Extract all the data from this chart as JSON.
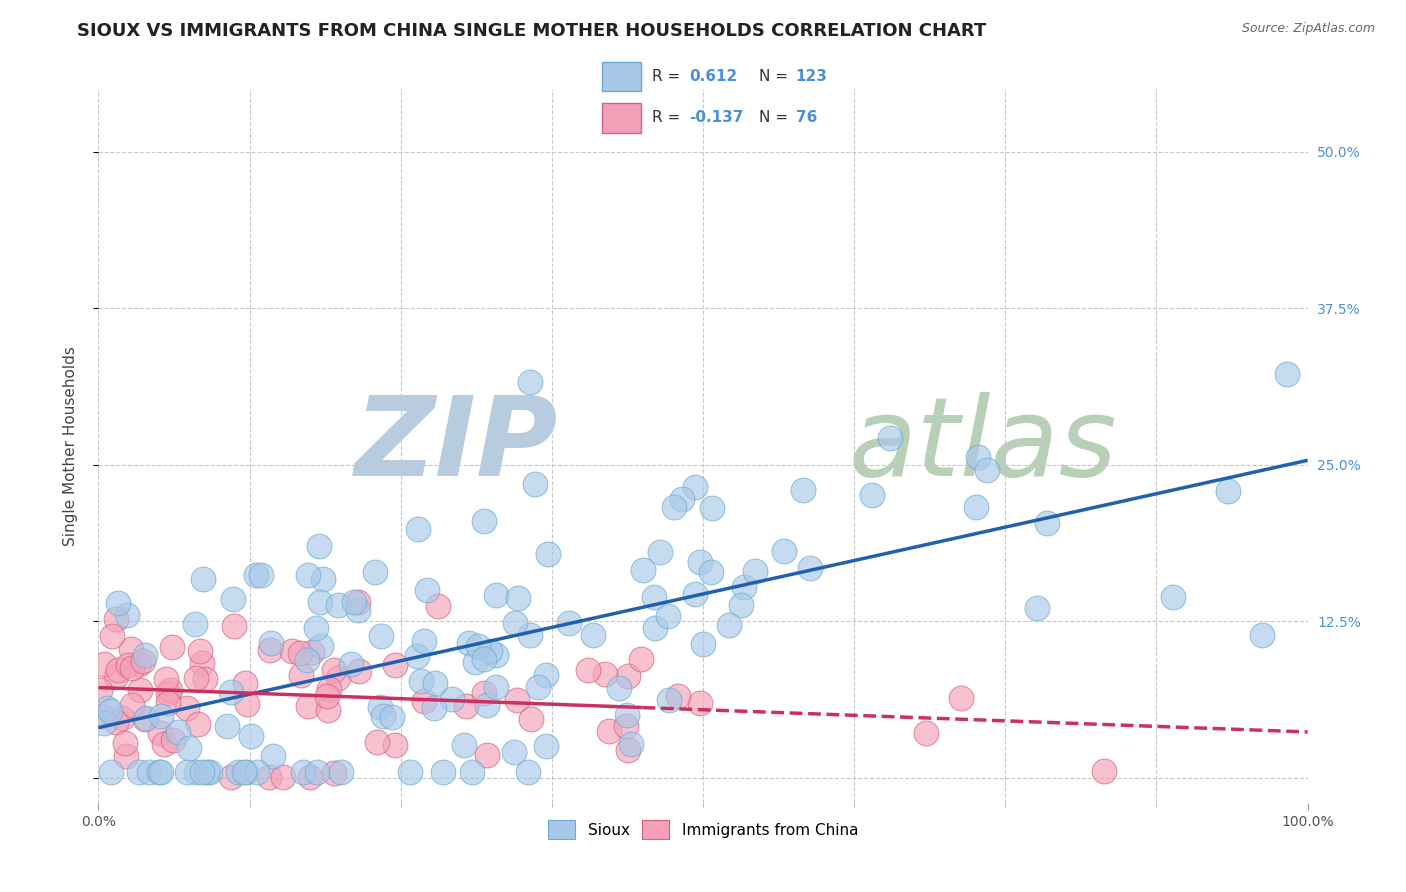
{
  "title": "SIOUX VS IMMIGRANTS FROM CHINA SINGLE MOTHER HOUSEHOLDS CORRELATION CHART",
  "source": "Source: ZipAtlas.com",
  "ylabel": "Single Mother Households",
  "xlim": [
    0,
    1.0
  ],
  "ylim": [
    -0.02,
    0.55
  ],
  "ytick_positions": [
    0.0,
    0.125,
    0.25,
    0.375,
    0.5
  ],
  "ytick_labels": [
    "",
    "12.5%",
    "25.0%",
    "37.5%",
    "50.0%"
  ],
  "sioux_color": "#a8c8e8",
  "sioux_edge_color": "#6aaad4",
  "china_color": "#f4a0b8",
  "china_edge_color": "#d46080",
  "sioux_line_color": "#2060b0",
  "china_line_color": "#cc3060",
  "background_color": "#ffffff",
  "grid_color": "#c8c8c8",
  "watermark_zip_color": "#b8cce0",
  "watermark_atlas_color": "#b8d0b8"
}
